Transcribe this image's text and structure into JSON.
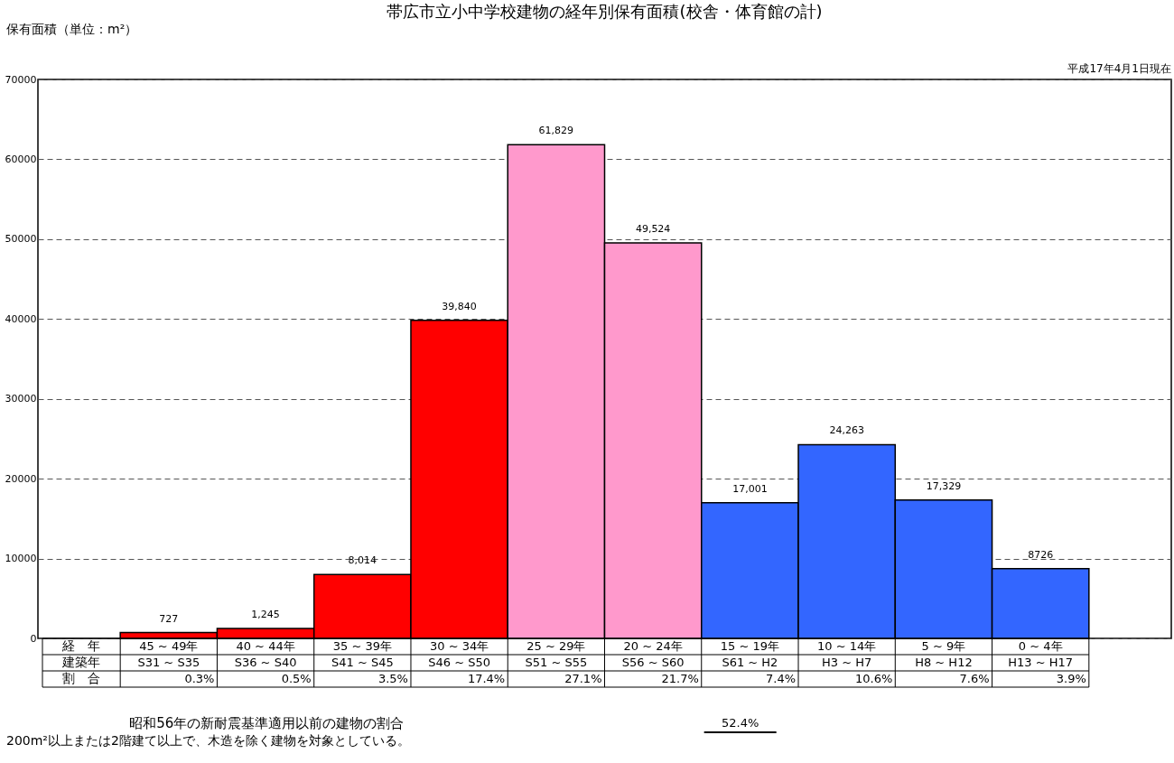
{
  "chart_data": {
    "type": "bar",
    "title": "帯広市立小中学校建物の経年別保有面積(校舎・体育館の計)",
    "ylabel": "保有面積（単位：m²）",
    "categories": [
      "45 ~ 49年",
      "40 ~ 44年",
      "35 ~ 39年",
      "30 ~ 34年",
      "25 ~ 29年",
      "20 ~ 24年",
      "15 ~ 19年",
      "10 ~ 14年",
      "5 ~ 9年",
      "0 ~ 4年"
    ],
    "values": [
      727,
      1245,
      8014,
      39840,
      61829,
      49524,
      17001,
      24263,
      17329,
      8726
    ],
    "value_labels": [
      "727",
      "1,245",
      "8,014",
      "39,840",
      "61,829",
      "49,524",
      "17,001",
      "24,263",
      "17,329",
      "8726"
    ],
    "colors": [
      "#ff0000",
      "#ff0000",
      "#ff0000",
      "#ff0000",
      "#ff99cc",
      "#ff99cc",
      "#3366ff",
      "#3366ff",
      "#3366ff",
      "#3366ff"
    ],
    "ylim": [
      0,
      70000
    ],
    "yticks": [
      0,
      10000,
      20000,
      30000,
      40000,
      50000,
      60000,
      70000
    ],
    "grid": "y",
    "annotations": [
      "経　年",
      "建築年",
      "割　合",
      "S31 ~ S35",
      "S36 ~ S40",
      "S41 ~ S45",
      "S46 ~ S50",
      "S51 ~ S55",
      "S56 ~ S60",
      "S61 ~ H2",
      "H3 ~ H7",
      "H8 ~ H12",
      "H13 ~ H17",
      "0.3%",
      "0.5%",
      "3.5%",
      "17.4%",
      "27.1%",
      "21.7%",
      "7.4%",
      "10.6%",
      "7.6%",
      "3.9%",
      "平成17年4月1日現在",
      "昭和56年の新耐震基準適用以前の建物の割合",
      "52.4%",
      "200m²以上または2階建て以上で、木造を除く建物を対象としている。"
    ]
  }
}
